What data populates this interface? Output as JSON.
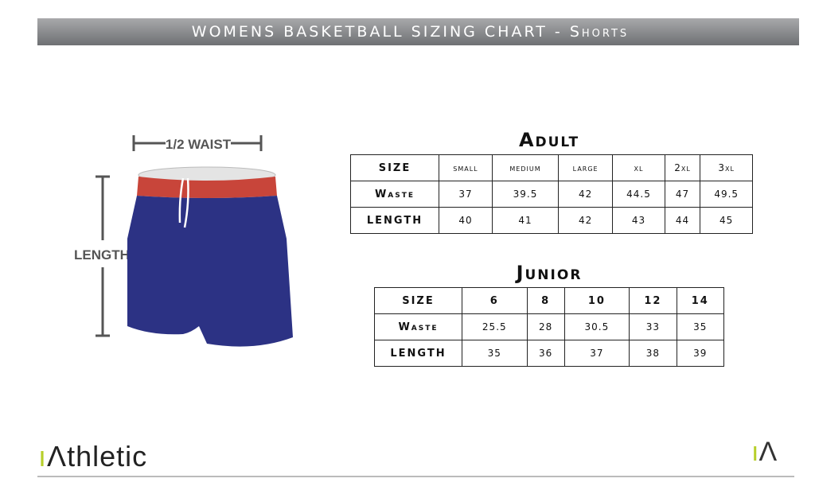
{
  "header": {
    "title": "WOMENS BASKETBALL SIZING CHART - Shorts"
  },
  "diagram": {
    "waist_label": "1/2 WAIST",
    "length_label": "LENGTH",
    "shorts_color": "#2c3284",
    "waistband_color": "#c8453a"
  },
  "adult": {
    "title": "Adult",
    "headers": [
      "SIZE",
      "small",
      "medium",
      "large",
      "xl",
      "2xl",
      "3xl"
    ],
    "rows": [
      [
        "Waste",
        "37",
        "39.5",
        "42",
        "44.5",
        "47",
        "49.5"
      ],
      [
        "LENGTH",
        "40",
        "41",
        "42",
        "43",
        "44",
        "45"
      ]
    ]
  },
  "junior": {
    "title": "Junior",
    "headers": [
      "SIZE",
      "6",
      "8",
      "10",
      "12",
      "14"
    ],
    "rows": [
      [
        "Waste",
        "25.5",
        "28",
        "30.5",
        "33",
        "35"
      ],
      [
        "LENGTH",
        "35",
        "36",
        "37",
        "38",
        "39"
      ]
    ]
  },
  "brand": {
    "logo": "iathletic",
    "mark": "iA",
    "accent": "#b7cf2a"
  }
}
